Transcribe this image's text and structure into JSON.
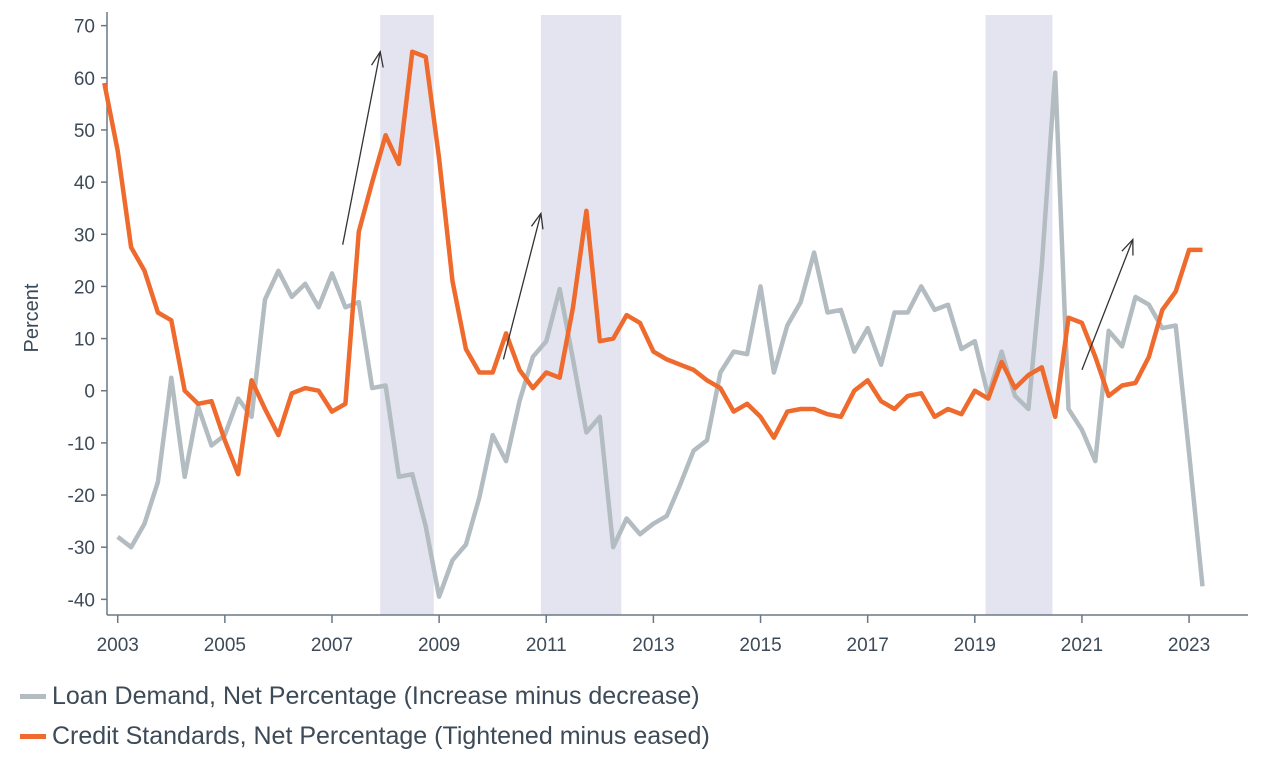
{
  "chart_data": {
    "type": "line",
    "ylabel": "Percent",
    "ylim": [
      -43,
      73
    ],
    "xlim": [
      2002.8,
      2024.1
    ],
    "yticks": [
      -40,
      -30,
      -20,
      -10,
      0,
      10,
      20,
      30,
      40,
      50,
      60,
      70
    ],
    "xticks": [
      2003,
      2005,
      2007,
      2009,
      2011,
      2013,
      2015,
      2017,
      2019,
      2021,
      2023
    ],
    "recessions": [
      [
        2007.9,
        2008.9
      ],
      [
        2010.9,
        2012.4
      ],
      [
        2019.2,
        2020.45
      ]
    ],
    "arrows": [
      {
        "from": [
          2007.2,
          28
        ],
        "to": [
          2007.9,
          65
        ]
      },
      {
        "from": [
          2010.2,
          6
        ],
        "to": [
          2010.9,
          34
        ]
      },
      {
        "from": [
          2021.0,
          4
        ],
        "to": [
          2021.95,
          29
        ]
      }
    ],
    "series": [
      {
        "name": "Loan Demand, Net Percentage (Increase minus decrease)",
        "color": "#b3bcc1",
        "points": [
          [
            2003.0,
            -28
          ],
          [
            2003.25,
            -30
          ],
          [
            2003.5,
            -25.5
          ],
          [
            2003.75,
            -17.5
          ],
          [
            2004.0,
            2.5
          ],
          [
            2004.25,
            -16.5
          ],
          [
            2004.5,
            -3
          ],
          [
            2004.75,
            -10.5
          ],
          [
            2005.0,
            -8.5
          ],
          [
            2005.25,
            -1.5
          ],
          [
            2005.5,
            -5
          ],
          [
            2005.75,
            17.5
          ],
          [
            2006.0,
            23
          ],
          [
            2006.25,
            18
          ],
          [
            2006.5,
            20.5
          ],
          [
            2006.75,
            16
          ],
          [
            2007.0,
            22.5
          ],
          [
            2007.25,
            16
          ],
          [
            2007.5,
            17
          ],
          [
            2007.75,
            0.5
          ],
          [
            2008.0,
            1
          ],
          [
            2008.25,
            -16.5
          ],
          [
            2008.5,
            -16
          ],
          [
            2008.75,
            -26
          ],
          [
            2009.0,
            -39.5
          ],
          [
            2009.25,
            -32.5
          ],
          [
            2009.5,
            -29.5
          ],
          [
            2009.75,
            -20.5
          ],
          [
            2010.0,
            -8.5
          ],
          [
            2010.25,
            -13.5
          ],
          [
            2010.5,
            -2
          ],
          [
            2010.75,
            6.5
          ],
          [
            2011.0,
            9.5
          ],
          [
            2011.25,
            19.5
          ],
          [
            2011.5,
            6
          ],
          [
            2011.75,
            -8
          ],
          [
            2012.0,
            -5
          ],
          [
            2012.25,
            -30
          ],
          [
            2012.5,
            -24.5
          ],
          [
            2012.75,
            -27.5
          ],
          [
            2013.0,
            -25.5
          ],
          [
            2013.25,
            -24
          ],
          [
            2013.5,
            -18
          ],
          [
            2013.75,
            -11.5
          ],
          [
            2014.0,
            -9.5
          ],
          [
            2014.25,
            3.5
          ],
          [
            2014.5,
            7.5
          ],
          [
            2014.75,
            7
          ],
          [
            2015.0,
            20
          ],
          [
            2015.25,
            3.5
          ],
          [
            2015.5,
            12.5
          ],
          [
            2015.75,
            17
          ],
          [
            2016.0,
            26.5
          ],
          [
            2016.25,
            15
          ],
          [
            2016.5,
            15.5
          ],
          [
            2016.75,
            7.5
          ],
          [
            2017.0,
            12
          ],
          [
            2017.25,
            5
          ],
          [
            2017.5,
            15
          ],
          [
            2017.75,
            15
          ],
          [
            2018.0,
            20
          ],
          [
            2018.25,
            15.5
          ],
          [
            2018.5,
            16.5
          ],
          [
            2018.75,
            8
          ],
          [
            2019.0,
            9.5
          ],
          [
            2019.25,
            -1
          ],
          [
            2019.5,
            7.5
          ],
          [
            2019.75,
            -1
          ],
          [
            2020.0,
            -3.5
          ],
          [
            2020.25,
            24
          ],
          [
            2020.5,
            61
          ],
          [
            2020.75,
            -3.5
          ],
          [
            2021.0,
            -7.5
          ],
          [
            2021.25,
            -13.5
          ],
          [
            2021.5,
            11.5
          ],
          [
            2021.75,
            8.5
          ],
          [
            2022.0,
            18
          ],
          [
            2022.25,
            16.5
          ],
          [
            2022.5,
            12
          ],
          [
            2022.75,
            12.5
          ],
          [
            2023.0,
            -12
          ],
          [
            2023.25,
            -37.5
          ]
        ]
      },
      {
        "name": "Credit Standards, Net Percentage (Tightened minus eased)",
        "color": "#ef6a2d",
        "points": [
          [
            2002.75,
            59
          ],
          [
            2003.0,
            46
          ],
          [
            2003.25,
            27.5
          ],
          [
            2003.5,
            23
          ],
          [
            2003.75,
            15
          ],
          [
            2004.0,
            13.5
          ],
          [
            2004.25,
            0
          ],
          [
            2004.5,
            -2.5
          ],
          [
            2004.75,
            -2
          ],
          [
            2005.0,
            -9.5
          ],
          [
            2005.25,
            -16
          ],
          [
            2005.5,
            2
          ],
          [
            2005.75,
            -3.5
          ],
          [
            2006.0,
            -8.5
          ],
          [
            2006.25,
            -0.5
          ],
          [
            2006.5,
            0.5
          ],
          [
            2006.75,
            0
          ],
          [
            2007.0,
            -4
          ],
          [
            2007.25,
            -2.5
          ],
          [
            2007.5,
            30.5
          ],
          [
            2007.75,
            40
          ],
          [
            2008.0,
            49
          ],
          [
            2008.25,
            43.5
          ],
          [
            2008.5,
            65
          ],
          [
            2008.75,
            64
          ],
          [
            2009.0,
            44.5
          ],
          [
            2009.25,
            21
          ],
          [
            2009.5,
            8
          ],
          [
            2009.75,
            3.5
          ],
          [
            2010.0,
            3.5
          ],
          [
            2010.25,
            11
          ],
          [
            2010.5,
            4
          ],
          [
            2010.75,
            0.5
          ],
          [
            2011.0,
            3.5
          ],
          [
            2011.25,
            2.5
          ],
          [
            2011.5,
            16
          ],
          [
            2011.75,
            34.5
          ],
          [
            2012.0,
            9.5
          ],
          [
            2012.25,
            10
          ],
          [
            2012.5,
            14.5
          ],
          [
            2012.75,
            13
          ],
          [
            2013.0,
            7.5
          ],
          [
            2013.25,
            6
          ],
          [
            2013.5,
            5
          ],
          [
            2013.75,
            4
          ],
          [
            2014.0,
            2
          ],
          [
            2014.25,
            0.5
          ],
          [
            2014.5,
            -4
          ],
          [
            2014.75,
            -2.5
          ],
          [
            2015.0,
            -5
          ],
          [
            2015.25,
            -9
          ],
          [
            2015.5,
            -4
          ],
          [
            2015.75,
            -3.5
          ],
          [
            2016.0,
            -3.5
          ],
          [
            2016.25,
            -4.5
          ],
          [
            2016.5,
            -5
          ],
          [
            2016.75,
            0
          ],
          [
            2017.0,
            2
          ],
          [
            2017.25,
            -2
          ],
          [
            2017.5,
            -3.5
          ],
          [
            2017.75,
            -1
          ],
          [
            2018.0,
            -0.5
          ],
          [
            2018.25,
            -5
          ],
          [
            2018.5,
            -3.5
          ],
          [
            2018.75,
            -4.5
          ],
          [
            2019.0,
            0
          ],
          [
            2019.25,
            -1.5
          ],
          [
            2019.5,
            5.5
          ],
          [
            2019.75,
            0.5
          ],
          [
            2020.0,
            3
          ],
          [
            2020.25,
            4.5
          ],
          [
            2020.5,
            -5
          ],
          [
            2020.75,
            14
          ],
          [
            2021.0,
            13
          ],
          [
            2021.25,
            6.5
          ],
          [
            2021.5,
            -1
          ],
          [
            2021.75,
            1
          ],
          [
            2022.0,
            1.5
          ],
          [
            2022.25,
            6.5
          ],
          [
            2022.5,
            15.5
          ],
          [
            2022.75,
            19
          ],
          [
            2023.0,
            27
          ],
          [
            2023.25,
            27
          ]
        ]
      }
    ]
  }
}
